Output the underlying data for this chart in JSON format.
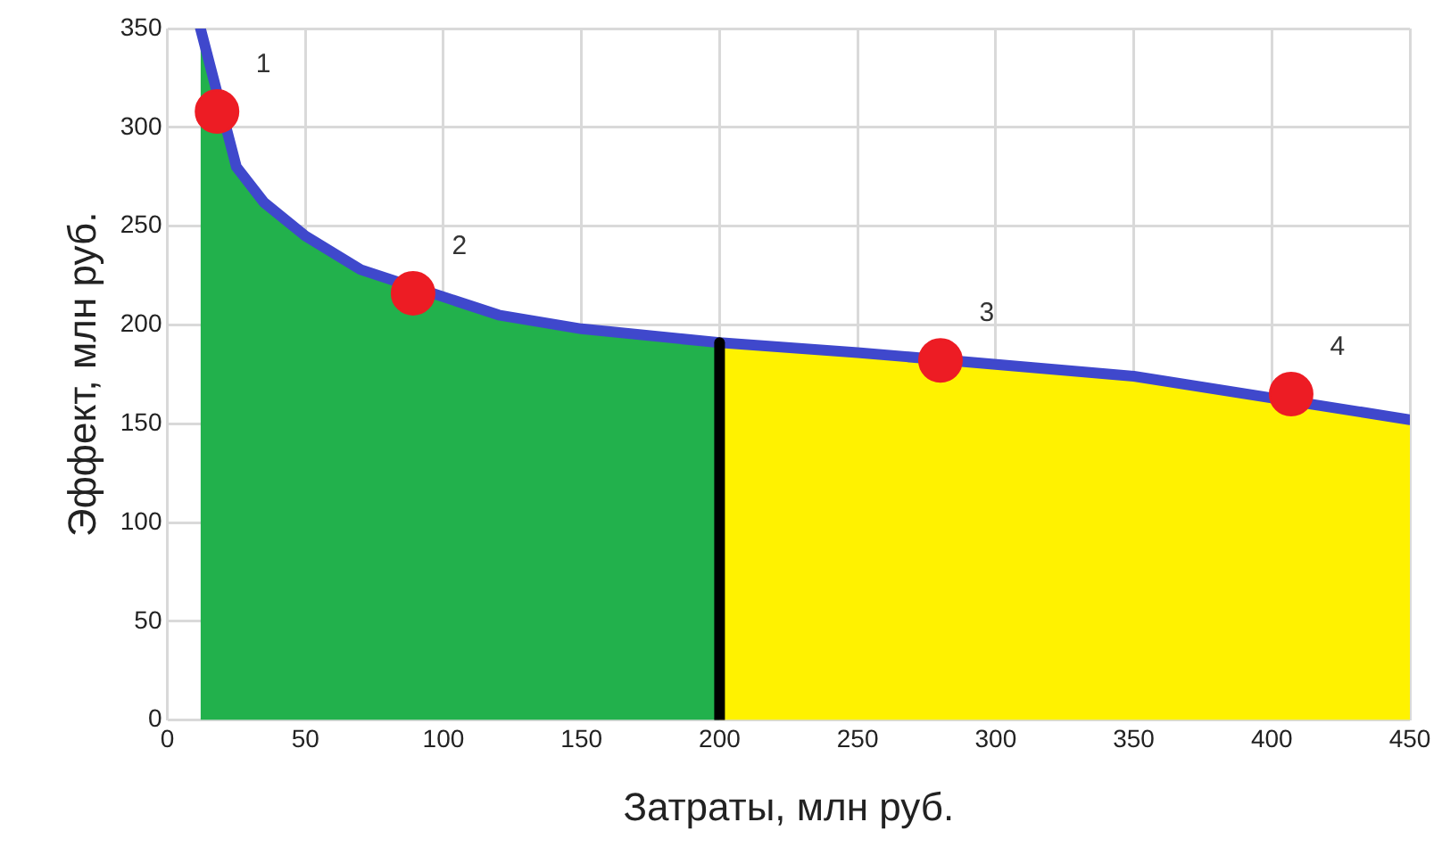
{
  "chart_data": {
    "type": "area",
    "xlabel": "Затраты, млн руб.",
    "ylabel": "Эффект, млн руб.",
    "xlim": [
      0,
      450
    ],
    "xticks": [
      0,
      50,
      100,
      150,
      200,
      250,
      300,
      350,
      400,
      450
    ],
    "ylim": [
      0,
      350
    ],
    "yticks": [
      0,
      50,
      100,
      150,
      200,
      250,
      300,
      350
    ],
    "grid": true,
    "legend": false,
    "annotations": [
      {
        "text": "1",
        "x": 18,
        "y": 308
      },
      {
        "text": "2",
        "x": 89,
        "y": 216
      },
      {
        "text": "3",
        "x": 280,
        "y": 182
      },
      {
        "text": "4",
        "x": 407,
        "y": 165
      }
    ],
    "series": [
      {
        "color": "#22b14c",
        "x": [
          12,
          25,
          35,
          50,
          70,
          120,
          150,
          200
        ],
        "values": [
          350,
          280,
          262,
          245,
          228,
          205,
          198,
          191
        ]
      },
      {
        "color": "#fff200",
        "x": [
          200,
          250,
          350,
          450
        ],
        "values": [
          191,
          186,
          174,
          152
        ]
      },
      {
        "type": "line",
        "color": "#000000",
        "x": [
          200,
          200
        ],
        "values": [
          0,
          191
        ]
      },
      {
        "type": "line",
        "color": "#3f48cc",
        "line_style": "solid",
        "x": [
          12,
          25,
          35,
          50,
          70,
          120,
          150,
          200,
          250,
          350,
          450
        ],
        "values": [
          350,
          280,
          262,
          245,
          228,
          205,
          198,
          191,
          186,
          174,
          152
        ]
      },
      {
        "type": "scatter",
        "color": "#ed1c24",
        "marker": "circle",
        "x": [
          18,
          89,
          280,
          407
        ],
        "values": [
          308,
          216,
          182,
          165
        ]
      }
    ]
  }
}
